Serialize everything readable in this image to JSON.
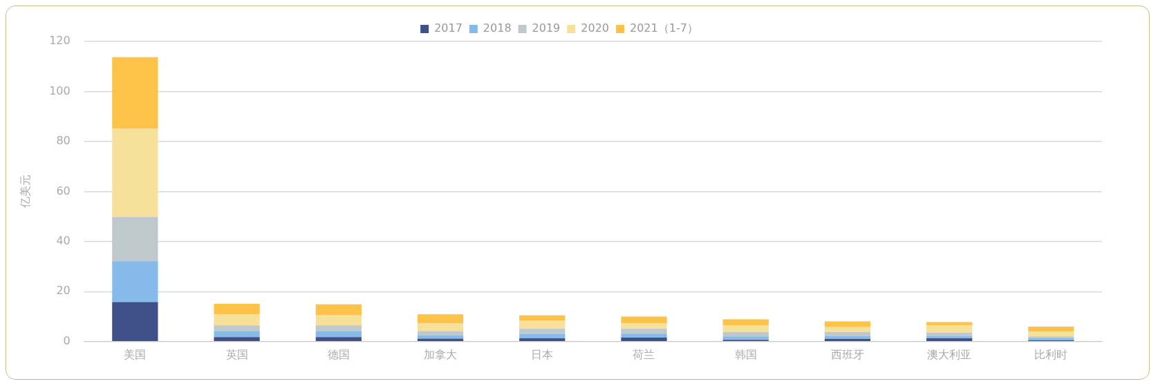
{
  "chart_data": {
    "type": "bar",
    "stacked": true,
    "ylabel": "亿美元",
    "categories": [
      "美国",
      "英国",
      "德国",
      "加拿大",
      "日本",
      "荷兰",
      "韩国",
      "西班牙",
      "澳大利亚",
      "比利时"
    ],
    "series": [
      {
        "name": "2017",
        "color": "#3f4f88",
        "values": [
          15.8,
          1.8,
          1.8,
          1.2,
          1.3,
          1.6,
          0.7,
          1.1,
          1.3,
          0.5
        ]
      },
      {
        "name": "2018",
        "color": "#86bbe9",
        "values": [
          16.4,
          2.4,
          2.4,
          1.3,
          1.8,
          1.6,
          1.4,
          1.2,
          1.0,
          0.8
        ]
      },
      {
        "name": "2019",
        "color": "#bec8cd",
        "values": [
          17.6,
          2.3,
          2.3,
          1.7,
          2.0,
          1.9,
          1.8,
          1.6,
          1.2,
          0.8
        ]
      },
      {
        "name": "2020",
        "color": "#f6e09a",
        "values": [
          35.3,
          4.4,
          4.0,
          3.2,
          3.2,
          2.3,
          2.6,
          1.9,
          3.0,
          2.0
        ]
      },
      {
        "name": "2021（1-7）",
        "color": "#fdc248",
        "values": [
          28.6,
          4.2,
          4.4,
          3.5,
          2.2,
          2.6,
          2.4,
          2.3,
          1.3,
          1.9
        ]
      }
    ],
    "ylim": [
      0,
      120
    ],
    "yticks": [
      0,
      20,
      40,
      60,
      80,
      100,
      120
    ],
    "grid": "y",
    "legend": "top"
  }
}
